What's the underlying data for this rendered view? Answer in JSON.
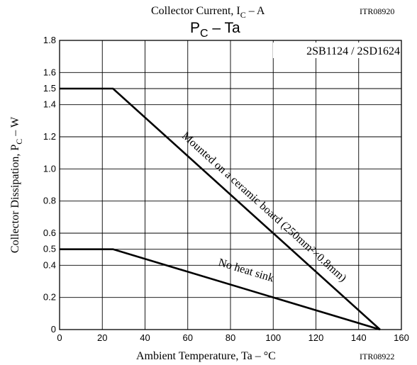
{
  "header": {
    "prev_caption": "Collector Current, I",
    "prev_caption_sub": "C",
    "prev_caption_tail": " – A",
    "prev_code": "ITR08920"
  },
  "footer": {
    "code": "ITR08922"
  },
  "chart_data": {
    "type": "line",
    "title": "P",
    "title_sub": "C",
    "title_tail": " – Ta",
    "part_label": "2SB1124 / 2SD1624",
    "xlabel": "Ambient Temperature, Ta  –  °C",
    "ylabel": "Collector Dissipation, P",
    "ylabel_sub": "C",
    "ylabel_tail": "  –  W",
    "xlim": [
      0,
      160
    ],
    "ylim": [
      0,
      1.8
    ],
    "xticks": [
      0,
      20,
      40,
      60,
      80,
      100,
      120,
      140,
      160
    ],
    "xtick_labels": [
      "0",
      "20",
      "40",
      "60",
      "80",
      "100",
      "120",
      "140",
      "160"
    ],
    "yticks": [
      0,
      0.2,
      0.4,
      0.5,
      0.6,
      0.8,
      1.0,
      1.2,
      1.4,
      1.5,
      1.6,
      1.8
    ],
    "ytick_labels": [
      "0",
      "0.2",
      "0.4",
      "0.5",
      "0.6",
      "0.8",
      "1.0",
      "1.2",
      "1.4",
      "1.5",
      "1.6",
      "1.8"
    ],
    "grid": true,
    "series": [
      {
        "name": "Mounted on a ceramic board (250mm²×0.8mm)",
        "x": [
          0,
          25,
          150
        ],
        "y": [
          1.5,
          1.5,
          0
        ]
      },
      {
        "name": "No heat sink",
        "x": [
          0,
          25,
          150
        ],
        "y": [
          0.5,
          0.5,
          0
        ]
      }
    ],
    "annotations": [
      {
        "text": "Mounted on a ceramic board (250mm²×0.8mm)",
        "x": 57,
        "y": 1.2
      },
      {
        "text": "No heat sink",
        "x": 74,
        "y": 0.4
      }
    ]
  }
}
